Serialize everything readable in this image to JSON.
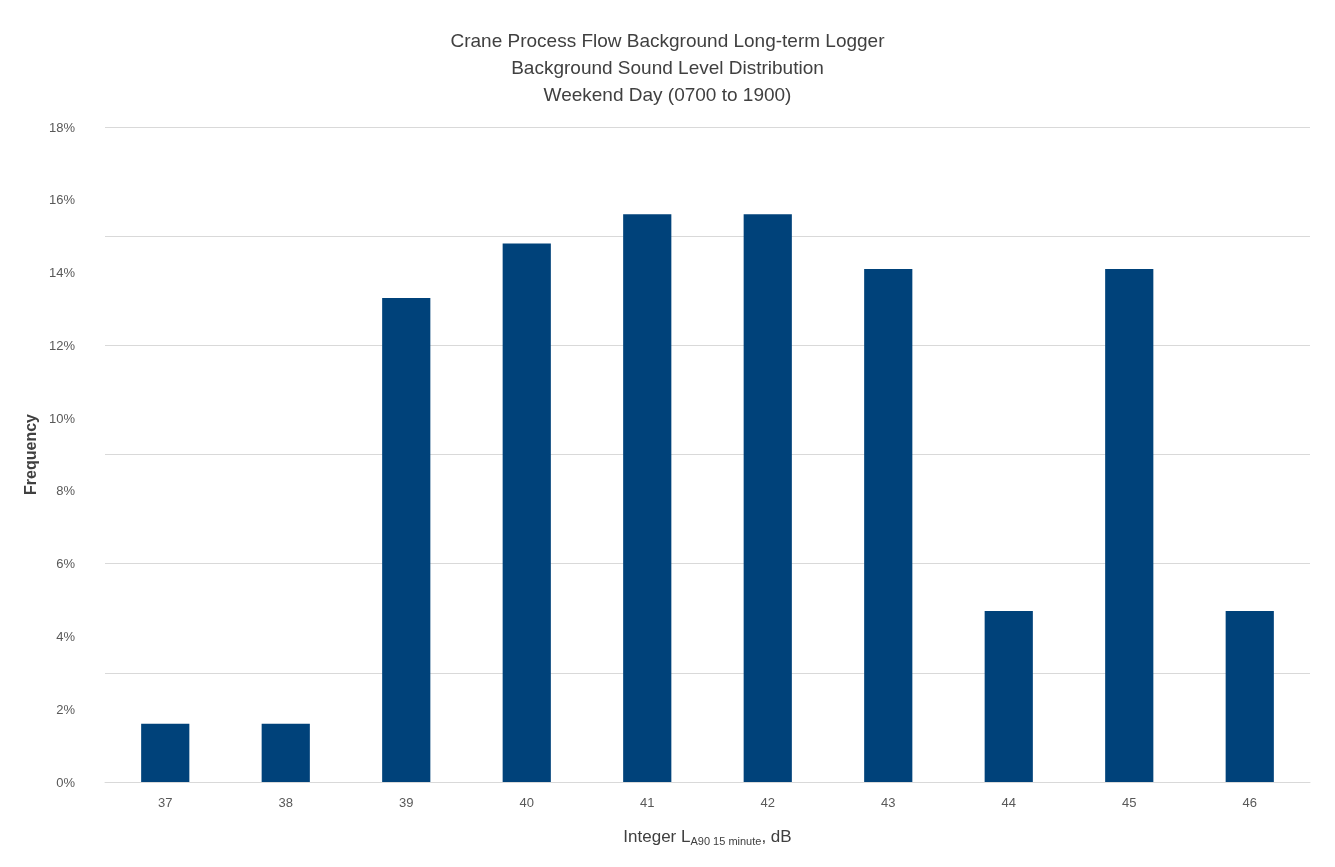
{
  "chart_data": {
    "type": "bar",
    "title": "Crane Process Flow Background Long-term Logger\nBackground Sound Level Distribution\nWeekend Day (0700 to 1900)",
    "xlabel": "Integer L$_{A90 15 minute}$, dB",
    "ylabel": "Frequency",
    "categories": [
      "37",
      "38",
      "39",
      "40",
      "41",
      "42",
      "43",
      "44",
      "45",
      "46"
    ],
    "values": [
      1.6,
      1.6,
      13.3,
      14.8,
      15.6,
      15.6,
      14.1,
      4.7,
      14.1,
      4.7
    ],
    "color": "#00427a",
    "ylim": [
      0,
      18
    ],
    "yticks": [
      {
        "value": 0,
        "label": "0%"
      },
      {
        "value": 2,
        "label": "2%"
      },
      {
        "value": 4,
        "label": "4%"
      },
      {
        "value": 6,
        "label": "6%"
      },
      {
        "value": 8,
        "label": "8%"
      },
      {
        "value": 10,
        "label": "10%"
      },
      {
        "value": 12,
        "label": "12%"
      },
      {
        "value": 14,
        "label": "14%"
      },
      {
        "value": 16,
        "label": "16%"
      },
      {
        "value": 18,
        "label": "18%"
      }
    ],
    "grid": true
  }
}
